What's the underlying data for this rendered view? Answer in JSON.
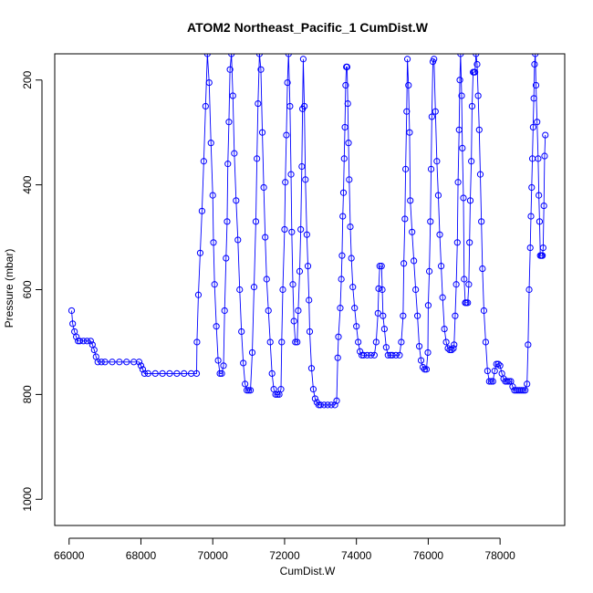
{
  "chart_data": {
    "type": "line",
    "title": "ATOM2 Northeast_Pacific_1 CumDist.W",
    "xlabel": "CumDist.W",
    "ylabel": "Pressure (mbar)",
    "xlim": [
      65600,
      79800
    ],
    "ylim": [
      1050,
      150
    ],
    "y_inverted": true,
    "x_ticks": [
      66000,
      68000,
      70000,
      72000,
      74000,
      76000,
      78000
    ],
    "y_ticks": [
      200,
      400,
      600,
      800,
      1000
    ],
    "grid": false,
    "legend": "none",
    "series": [
      {
        "color": "#0000ff",
        "marker": "open-circle",
        "line": true,
        "points": [
          [
            66070,
            640
          ],
          [
            66100,
            665
          ],
          [
            66150,
            680
          ],
          [
            66200,
            690
          ],
          [
            66250,
            698
          ],
          [
            66300,
            698
          ],
          [
            66400,
            698
          ],
          [
            66500,
            698
          ],
          [
            66600,
            698
          ],
          [
            66650,
            705
          ],
          [
            66700,
            715
          ],
          [
            66750,
            728
          ],
          [
            66800,
            738
          ],
          [
            66900,
            738
          ],
          [
            67000,
            738
          ],
          [
            67200,
            738
          ],
          [
            67400,
            738
          ],
          [
            67600,
            738
          ],
          [
            67800,
            738
          ],
          [
            67950,
            738
          ],
          [
            68000,
            745
          ],
          [
            68050,
            752
          ],
          [
            68100,
            760
          ],
          [
            68200,
            760
          ],
          [
            68400,
            760
          ],
          [
            68600,
            760
          ],
          [
            68800,
            760
          ],
          [
            69000,
            760
          ],
          [
            69200,
            760
          ],
          [
            69400,
            760
          ],
          [
            69550,
            760
          ],
          [
            69560,
            700
          ],
          [
            69600,
            610
          ],
          [
            69650,
            530
          ],
          [
            69700,
            450
          ],
          [
            69750,
            355
          ],
          [
            69800,
            250
          ],
          [
            69850,
            150
          ],
          [
            69900,
            205
          ],
          [
            69950,
            320
          ],
          [
            70000,
            420
          ],
          [
            70020,
            510
          ],
          [
            70050,
            590
          ],
          [
            70100,
            670
          ],
          [
            70150,
            735
          ],
          [
            70200,
            760
          ],
          [
            70250,
            760
          ],
          [
            70300,
            745
          ],
          [
            70330,
            640
          ],
          [
            70370,
            540
          ],
          [
            70400,
            470
          ],
          [
            70420,
            360
          ],
          [
            70450,
            280
          ],
          [
            70480,
            180
          ],
          [
            70520,
            150
          ],
          [
            70560,
            230
          ],
          [
            70600,
            340
          ],
          [
            70650,
            430
          ],
          [
            70700,
            505
          ],
          [
            70750,
            600
          ],
          [
            70800,
            680
          ],
          [
            70850,
            740
          ],
          [
            70900,
            780
          ],
          [
            70950,
            792
          ],
          [
            71000,
            792
          ],
          [
            71050,
            792
          ],
          [
            71100,
            720
          ],
          [
            71150,
            595
          ],
          [
            71200,
            470
          ],
          [
            71230,
            350
          ],
          [
            71260,
            245
          ],
          [
            71300,
            150
          ],
          [
            71340,
            180
          ],
          [
            71380,
            300
          ],
          [
            71420,
            405
          ],
          [
            71460,
            500
          ],
          [
            71500,
            580
          ],
          [
            71550,
            640
          ],
          [
            71600,
            700
          ],
          [
            71650,
            760
          ],
          [
            71700,
            790
          ],
          [
            71750,
            800
          ],
          [
            71800,
            800
          ],
          [
            71850,
            800
          ],
          [
            71900,
            790
          ],
          [
            71920,
            700
          ],
          [
            71950,
            600
          ],
          [
            72000,
            485
          ],
          [
            72020,
            395
          ],
          [
            72050,
            305
          ],
          [
            72080,
            205
          ],
          [
            72110,
            150
          ],
          [
            72150,
            250
          ],
          [
            72180,
            380
          ],
          [
            72200,
            490
          ],
          [
            72230,
            590
          ],
          [
            72260,
            660
          ],
          [
            72300,
            700
          ],
          [
            72350,
            700
          ],
          [
            72380,
            640
          ],
          [
            72420,
            565
          ],
          [
            72450,
            485
          ],
          [
            72480,
            365
          ],
          [
            72500,
            255
          ],
          [
            72520,
            160
          ],
          [
            72550,
            250
          ],
          [
            72580,
            390
          ],
          [
            72620,
            495
          ],
          [
            72650,
            555
          ],
          [
            72680,
            620
          ],
          [
            72700,
            680
          ],
          [
            72750,
            750
          ],
          [
            72800,
            790
          ],
          [
            72850,
            808
          ],
          [
            72900,
            815
          ],
          [
            72950,
            820
          ],
          [
            73000,
            820
          ],
          [
            73100,
            820
          ],
          [
            73200,
            820
          ],
          [
            73300,
            820
          ],
          [
            73400,
            820
          ],
          [
            73450,
            812
          ],
          [
            73480,
            730
          ],
          [
            73500,
            690
          ],
          [
            73550,
            635
          ],
          [
            73580,
            580
          ],
          [
            73600,
            535
          ],
          [
            73620,
            460
          ],
          [
            73640,
            415
          ],
          [
            73660,
            350
          ],
          [
            73680,
            290
          ],
          [
            73700,
            210
          ],
          [
            73720,
            175
          ],
          [
            73740,
            175
          ],
          [
            73760,
            245
          ],
          [
            73780,
            320
          ],
          [
            73800,
            390
          ],
          [
            73830,
            480
          ],
          [
            73860,
            540
          ],
          [
            73900,
            595
          ],
          [
            73950,
            635
          ],
          [
            74000,
            670
          ],
          [
            74050,
            700
          ],
          [
            74100,
            718
          ],
          [
            74150,
            725
          ],
          [
            74200,
            725
          ],
          [
            74300,
            725
          ],
          [
            74400,
            725
          ],
          [
            74500,
            725
          ],
          [
            74550,
            700
          ],
          [
            74600,
            645
          ],
          [
            74620,
            598
          ],
          [
            74650,
            555
          ],
          [
            74700,
            555
          ],
          [
            74720,
            600
          ],
          [
            74740,
            650
          ],
          [
            74780,
            675
          ],
          [
            74830,
            710
          ],
          [
            74880,
            725
          ],
          [
            74950,
            725
          ],
          [
            75000,
            725
          ],
          [
            75100,
            725
          ],
          [
            75200,
            725
          ],
          [
            75250,
            700
          ],
          [
            75300,
            650
          ],
          [
            75320,
            550
          ],
          [
            75350,
            465
          ],
          [
            75370,
            370
          ],
          [
            75400,
            260
          ],
          [
            75420,
            160
          ],
          [
            75450,
            210
          ],
          [
            75480,
            300
          ],
          [
            75500,
            430
          ],
          [
            75550,
            490
          ],
          [
            75600,
            545
          ],
          [
            75650,
            600
          ],
          [
            75700,
            650
          ],
          [
            75750,
            708
          ],
          [
            75800,
            735
          ],
          [
            75850,
            748
          ],
          [
            75900,
            752
          ],
          [
            75950,
            752
          ],
          [
            75990,
            720
          ],
          [
            76000,
            630
          ],
          [
            76030,
            565
          ],
          [
            76060,
            470
          ],
          [
            76080,
            370
          ],
          [
            76100,
            270
          ],
          [
            76130,
            165
          ],
          [
            76160,
            160
          ],
          [
            76200,
            260
          ],
          [
            76240,
            355
          ],
          [
            76280,
            420
          ],
          [
            76320,
            495
          ],
          [
            76360,
            555
          ],
          [
            76400,
            615
          ],
          [
            76450,
            675
          ],
          [
            76500,
            700
          ],
          [
            76550,
            712
          ],
          [
            76600,
            715
          ],
          [
            76650,
            715
          ],
          [
            76700,
            712
          ],
          [
            76720,
            705
          ],
          [
            76750,
            650
          ],
          [
            76780,
            590
          ],
          [
            76810,
            510
          ],
          [
            76830,
            395
          ],
          [
            76860,
            295
          ],
          [
            76880,
            200
          ],
          [
            76900,
            150
          ],
          [
            76930,
            230
          ],
          [
            76950,
            330
          ],
          [
            76980,
            425
          ],
          [
            77000,
            580
          ],
          [
            77030,
            625
          ],
          [
            77060,
            625
          ],
          [
            77100,
            625
          ],
          [
            77130,
            590
          ],
          [
            77150,
            510
          ],
          [
            77170,
            430
          ],
          [
            77200,
            355
          ],
          [
            77220,
            250
          ],
          [
            77250,
            185
          ],
          [
            77280,
            185
          ],
          [
            77300,
            185
          ],
          [
            77330,
            150
          ],
          [
            77360,
            170
          ],
          [
            77390,
            230
          ],
          [
            77420,
            295
          ],
          [
            77450,
            380
          ],
          [
            77480,
            470
          ],
          [
            77510,
            560
          ],
          [
            77550,
            640
          ],
          [
            77600,
            700
          ],
          [
            77650,
            755
          ],
          [
            77700,
            775
          ],
          [
            77750,
            775
          ],
          [
            77800,
            775
          ],
          [
            77850,
            755
          ],
          [
            77900,
            742
          ],
          [
            77950,
            742
          ],
          [
            78000,
            745
          ],
          [
            78050,
            760
          ],
          [
            78100,
            770
          ],
          [
            78150,
            775
          ],
          [
            78200,
            775
          ],
          [
            78250,
            775
          ],
          [
            78300,
            775
          ],
          [
            78350,
            785
          ],
          [
            78400,
            792
          ],
          [
            78450,
            792
          ],
          [
            78500,
            792
          ],
          [
            78550,
            792
          ],
          [
            78600,
            792
          ],
          [
            78650,
            792
          ],
          [
            78700,
            792
          ],
          [
            78750,
            780
          ],
          [
            78780,
            705
          ],
          [
            78810,
            600
          ],
          [
            78840,
            520
          ],
          [
            78860,
            460
          ],
          [
            78880,
            405
          ],
          [
            78900,
            350
          ],
          [
            78920,
            290
          ],
          [
            78940,
            235
          ],
          [
            78960,
            170
          ],
          [
            78980,
            150
          ],
          [
            79000,
            210
          ],
          [
            79030,
            280
          ],
          [
            79060,
            350
          ],
          [
            79080,
            420
          ],
          [
            79100,
            470
          ],
          [
            79120,
            535
          ],
          [
            79150,
            535
          ],
          [
            79180,
            535
          ],
          [
            79200,
            520
          ],
          [
            79220,
            440
          ],
          [
            79240,
            345
          ],
          [
            79260,
            305
          ]
        ]
      }
    ]
  }
}
